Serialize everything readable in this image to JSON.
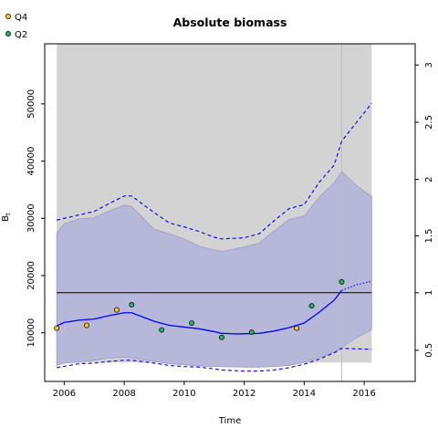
{
  "chart_data": {
    "type": "line",
    "title": "Absolute biomass",
    "xlabel": "Time",
    "ylabel": "B",
    "ylabel_sub": "t",
    "xlim": [
      2005.35,
      2017.7
    ],
    "ylim": [
      1500,
      60500
    ],
    "x_ticks": [
      2006,
      2008,
      2010,
      2012,
      2014,
      2016
    ],
    "y_ticks": [
      10000,
      20000,
      30000,
      40000,
      50000
    ],
    "y2_ticks": [
      {
        "label": "0.5",
        "value": 6945
      },
      {
        "label": "1",
        "value": 17000
      },
      {
        "label": "1.5",
        "value": 26935
      },
      {
        "label": "2",
        "value": 36800
      },
      {
        "label": "2.5",
        "value": 46790
      },
      {
        "label": "3",
        "value": 56790
      }
    ],
    "grey_region": {
      "x": [
        2005.75,
        2016.25
      ],
      "y": [
        4800,
        60500
      ]
    },
    "forecast_start": 2015.25,
    "reference_line": 17000,
    "confidence_band": {
      "x": [
        2005.75,
        2006.0,
        2006.5,
        2007.0,
        2007.5,
        2008.0,
        2008.25,
        2009.0,
        2009.5,
        2010.0,
        2010.5,
        2011.0,
        2011.25,
        2012.0,
        2012.5,
        2013.0,
        2013.5,
        2014.0,
        2014.5,
        2015.0,
        2015.25,
        2015.75,
        2016.25
      ],
      "upper": [
        27400,
        29100,
        29900,
        30100,
        31300,
        32300,
        32100,
        28100,
        27300,
        26400,
        25100,
        24500,
        24200,
        25000,
        25700,
        27800,
        29800,
        30400,
        33700,
        36200,
        38200,
        35700,
        33800
      ],
      "lower": [
        4300,
        4700,
        4900,
        5200,
        5600,
        5700,
        5600,
        5000,
        4600,
        4400,
        4200,
        4100,
        4100,
        4000,
        4000,
        4100,
        4300,
        4800,
        5700,
        6600,
        7400,
        9200,
        10500
      ]
    },
    "series": [
      {
        "name": "",
        "style": "solid",
        "x": [
          2005.75,
          2006.0,
          2006.5,
          2007.0,
          2007.5,
          2008.0,
          2008.25,
          2009.0,
          2009.5,
          2010.0,
          2010.5,
          2011.0,
          2011.25,
          2011.75,
          2012.5,
          2013.0,
          2013.5,
          2014.0,
          2014.5,
          2015.0,
          2015.25
        ],
        "y": [
          11200,
          11800,
          12200,
          12400,
          13000,
          13500,
          13500,
          12000,
          11300,
          11000,
          10700,
          10200,
          9900,
          9800,
          9900,
          10300,
          10900,
          11700,
          13600,
          15700,
          17400
        ]
      },
      {
        "name": "",
        "style": "dotted",
        "x": [
          2015.25,
          2015.75,
          2016.25
        ],
        "y": [
          17400,
          18400,
          19000
        ]
      },
      {
        "name": "",
        "style": "dashed",
        "x": [
          2005.75,
          2006.5,
          2007.0,
          2007.5,
          2008.0,
          2008.25,
          2009.0,
          2009.5,
          2010.0,
          2010.5,
          2011.0,
          2011.25,
          2012.0,
          2012.5,
          2013.0,
          2013.5,
          2014.0,
          2014.5,
          2015.0,
          2015.25,
          2016.25
        ],
        "y": [
          29700,
          30600,
          31200,
          32600,
          33900,
          33900,
          31000,
          29200,
          28500,
          27700,
          26700,
          26400,
          26600,
          27300,
          29600,
          31700,
          32400,
          36300,
          39300,
          43500,
          50100
        ]
      },
      {
        "name": "",
        "style": "dashed",
        "x": [
          2005.75,
          2006.5,
          2007.0,
          2007.5,
          2008.0,
          2008.25,
          2009.0,
          2009.5,
          2010.0,
          2010.5,
          2011.0,
          2011.25,
          2012.0,
          2012.5,
          2013.0,
          2013.5,
          2014.0,
          2014.5,
          2015.0,
          2015.25,
          2016.25
        ],
        "y": [
          3900,
          4600,
          4700,
          5000,
          5200,
          5200,
          4700,
          4300,
          4100,
          4000,
          3700,
          3500,
          3300,
          3300,
          3500,
          3900,
          4500,
          5400,
          6500,
          7300,
          7100
        ]
      }
    ],
    "observations": [
      {
        "name": "Q4",
        "color": "#f2c81a",
        "points": [
          [
            2005.75,
            10800
          ],
          [
            2006.75,
            11300
          ],
          [
            2007.75,
            14000
          ],
          [
            2013.75,
            10800
          ]
        ]
      },
      {
        "name": "Q2",
        "color": "#22b35a",
        "points": [
          [
            2008.25,
            14900
          ],
          [
            2009.25,
            10500
          ],
          [
            2010.25,
            11700
          ],
          [
            2011.25,
            9200
          ],
          [
            2012.25,
            10100
          ],
          [
            2014.25,
            14700
          ],
          [
            2015.25,
            18900
          ]
        ]
      }
    ],
    "legend_position": "top-left",
    "colors": {
      "band": "#b7b7d9",
      "band_edge": "#9c9cc8",
      "line": "#0000ff",
      "grey": "#d3d3d3",
      "ref_line": "#000000",
      "forecast_line": "#bdbdbd"
    }
  }
}
